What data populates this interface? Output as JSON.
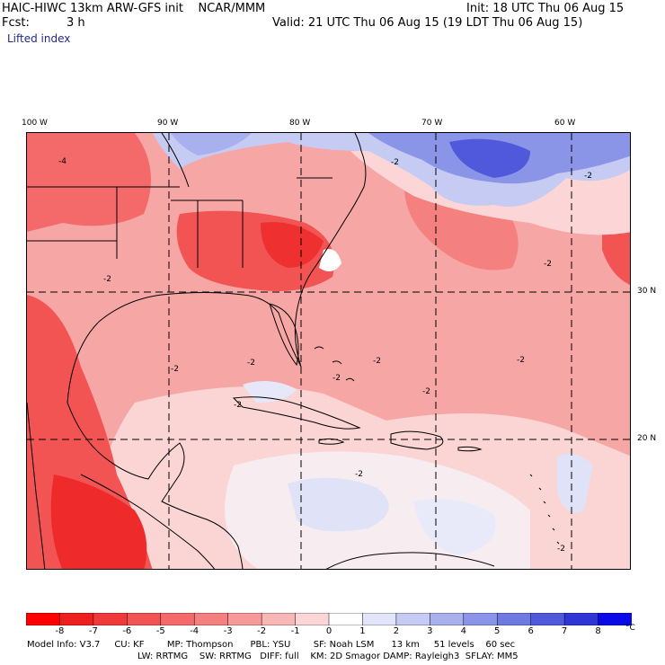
{
  "header": {
    "title": "HAIC-HIWC 13km ARW-GFS init    NCAR/MMM",
    "fcst_label": "Fcst:",
    "fcst_value": "3 h",
    "field": "Lifted index",
    "init": "Init: 18 UTC Thu 06 Aug 15",
    "valid": "Valid: 21 UTC Thu 06 Aug 15 (19 LDT Thu 06 Aug 15)"
  },
  "axes": {
    "lon_labels": [
      "100 W",
      "90 W",
      "80 W",
      "70 W",
      "60 W"
    ],
    "lat_labels": [
      "30 N",
      "20 N"
    ],
    "contour_labels": [
      "-4",
      "-2",
      "-2",
      "-2",
      "-2",
      "-2",
      "-2",
      "-2",
      "-2",
      "-2",
      "-2",
      "-2",
      "-2",
      "-2"
    ]
  },
  "colors": {
    "deep_red": "#ff0000",
    "red": "#f04a4a",
    "light_red": "#f7a6a6",
    "pale_red": "#fbd4d4",
    "white": "#ffffff",
    "pale_blue": "#e0e3f8",
    "blue": "#7f8ae8",
    "deep_blue": "#1a1aee",
    "coast": "#000000",
    "grid": "#000000"
  },
  "colorbar": {
    "levels": [
      "-8",
      "-7",
      "-6",
      "-5",
      "-4",
      "-3",
      "-2",
      "-1",
      "0",
      "1",
      "2",
      "3",
      "4",
      "5",
      "6",
      "7",
      "8"
    ],
    "colors": [
      "#ff0000",
      "#ee1f1f",
      "#f03a3a",
      "#f25454",
      "#f46a6a",
      "#f58080",
      "#f79a9a",
      "#f9b6b6",
      "#fcd6d6",
      "#ffffff",
      "#e2e4fa",
      "#c6cbf4",
      "#a8b0ee",
      "#8b95e8",
      "#6f79e2",
      "#5058dc",
      "#3036d6",
      "#0a0ae6"
    ],
    "unit": "°C"
  },
  "model_info": {
    "line1": "Model Info: V3.7     CU: KF        MP: Thompson      PBL: YSU        SF: Noah LSM      13 km     51 levels    60 sec",
    "line2": "LW: RRTMG    SW: RRTMG   DIFF: full    KM: 2D Smagor DAMP: Rayleigh3  SFLAY: MM5"
  }
}
